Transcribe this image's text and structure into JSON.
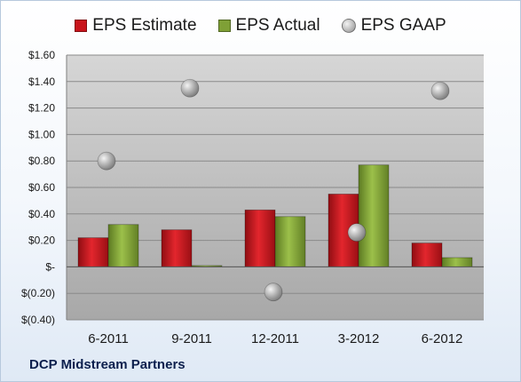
{
  "chart_data": {
    "type": "bar",
    "categories": [
      "6-2011",
      "9-2011",
      "12-2011",
      "3-2012",
      "6-2012"
    ],
    "series": [
      {
        "name": "EPS Estimate",
        "kind": "bar",
        "color": "#c8141b",
        "values": [
          0.22,
          0.28,
          0.43,
          0.55,
          0.18
        ]
      },
      {
        "name": "EPS Actual",
        "kind": "bar",
        "color": "#7fa036",
        "values": [
          0.32,
          0.01,
          0.38,
          0.77,
          0.07
        ]
      },
      {
        "name": "EPS GAAP",
        "kind": "scatter",
        "color": "#a6a6a6",
        "values": [
          0.8,
          1.35,
          -0.19,
          0.26,
          1.33
        ]
      }
    ],
    "ylim": [
      -0.4,
      1.6
    ],
    "yticks": [
      1.6,
      1.4,
      1.2,
      1.0,
      0.8,
      0.6,
      0.4,
      0.2,
      0.0,
      -0.2,
      -0.4
    ],
    "ytick_labels": [
      "$1.60",
      "$1.40",
      "$1.20",
      "$1.00",
      "$0.80",
      "$0.60",
      "$0.40",
      "$0.20",
      "$-",
      "$(0.20)",
      "$(0.40)"
    ],
    "grid": true,
    "legend_position": "top"
  },
  "footer": {
    "company": "DCP Midstream Partners"
  }
}
